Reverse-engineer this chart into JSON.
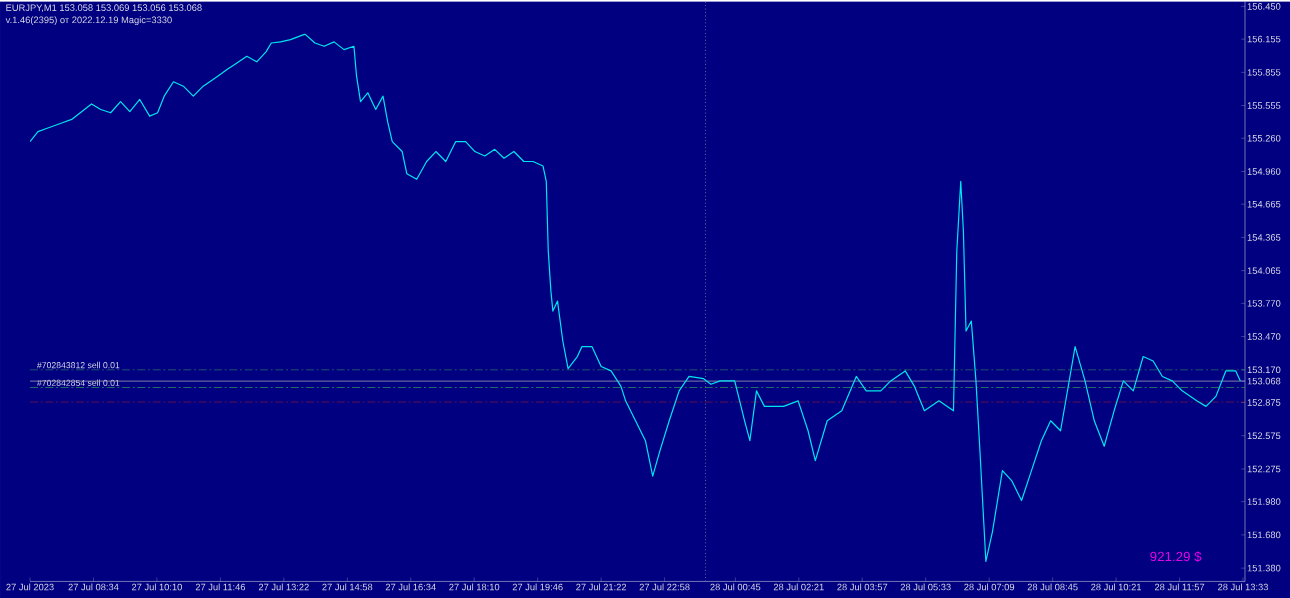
{
  "chart_data": {
    "type": "line",
    "title": "EURJPY,M1  153.058 153.069 153.056 153.068",
    "subtitle": "v.1.46(2395) от 2022.12.19 Magic=3330",
    "annotations": [
      "921.29 $"
    ],
    "xlim": [
      "2023-07-27T06:58",
      "2023-07-28T13:36"
    ],
    "ylim": [
      151.26,
      156.495
    ],
    "xticks": [
      {
        "value": "2023-07-27T06:58",
        "label": "27 Jul 2023"
      },
      {
        "value": "2023-07-27T08:34",
        "label": "27 Jul 08:34"
      },
      {
        "value": "2023-07-27T10:10",
        "label": "27 Jul 10:10"
      },
      {
        "value": "2023-07-27T11:46",
        "label": "27 Jul 11:46"
      },
      {
        "value": "2023-07-27T13:22",
        "label": "27 Jul 13:22"
      },
      {
        "value": "2023-07-27T14:58",
        "label": "27 Jul 14:58"
      },
      {
        "value": "2023-07-27T16:34",
        "label": "27 Jul 16:34"
      },
      {
        "value": "2023-07-27T18:10",
        "label": "27 Jul 18:10"
      },
      {
        "value": "2023-07-27T19:46",
        "label": "27 Jul 19:46"
      },
      {
        "value": "2023-07-27T21:22",
        "label": "27 Jul 21:22"
      },
      {
        "value": "2023-07-27T22:58",
        "label": "27 Jul 22:58"
      },
      {
        "value": "2023-07-28T00:45",
        "label": "28 Jul 00:45"
      },
      {
        "value": "2023-07-28T02:21",
        "label": "28 Jul 02:21"
      },
      {
        "value": "2023-07-28T03:57",
        "label": "28 Jul 03:57"
      },
      {
        "value": "2023-07-28T05:33",
        "label": "28 Jul 05:33"
      },
      {
        "value": "2023-07-28T07:09",
        "label": "28 Jul 07:09"
      },
      {
        "value": "2023-07-28T08:45",
        "label": "28 Jul 08:45"
      },
      {
        "value": "2023-07-28T10:21",
        "label": "28 Jul 10:21"
      },
      {
        "value": "2023-07-28T11:57",
        "label": "28 Jul 11:57"
      },
      {
        "value": "2023-07-28T13:33",
        "label": "28 Jul 13:33"
      }
    ],
    "yticks": [
      {
        "value": 156.45,
        "label": "156.450"
      },
      {
        "value": 156.155,
        "label": "156.155"
      },
      {
        "value": 155.855,
        "label": "155.855"
      },
      {
        "value": 155.555,
        "label": "155.555"
      },
      {
        "value": 155.26,
        "label": "155.260"
      },
      {
        "value": 154.96,
        "label": "154.960"
      },
      {
        "value": 154.665,
        "label": "154.665"
      },
      {
        "value": 154.365,
        "label": "154.365"
      },
      {
        "value": 154.065,
        "label": "154.065"
      },
      {
        "value": 153.77,
        "label": "153.770"
      },
      {
        "value": 153.47,
        "label": "153.470"
      },
      {
        "value": 153.17,
        "label": "153.170"
      },
      {
        "value": 153.068,
        "label": "153.068"
      },
      {
        "value": 152.875,
        "label": "152.875"
      },
      {
        "value": 152.575,
        "label": "152.575"
      },
      {
        "value": 152.275,
        "label": "152.275"
      },
      {
        "value": 151.98,
        "label": "151.980"
      },
      {
        "value": 151.68,
        "label": "151.680"
      },
      {
        "value": 151.38,
        "label": "151.380"
      }
    ],
    "x": [
      "2023-07-27T06:58",
      "2023-07-27T07:10",
      "2023-07-27T07:24",
      "2023-07-27T07:47",
      "2023-07-27T08:01",
      "2023-07-27T08:16",
      "2023-07-27T08:31",
      "2023-07-27T08:45",
      "2023-07-27T09:00",
      "2023-07-27T09:15",
      "2023-07-27T09:29",
      "2023-07-27T09:44",
      "2023-07-27T09:59",
      "2023-07-27T10:11",
      "2023-07-27T10:21",
      "2023-07-27T10:35",
      "2023-07-27T10:50",
      "2023-07-27T11:05",
      "2023-07-27T11:20",
      "2023-07-27T11:42",
      "2023-07-27T11:56",
      "2023-07-27T12:11",
      "2023-07-27T12:26",
      "2023-07-27T12:41",
      "2023-07-27T12:55",
      "2023-07-27T13:03",
      "2023-07-27T13:17",
      "2023-07-27T13:32",
      "2023-07-27T13:54",
      "2023-07-27T14:09",
      "2023-07-27T14:23",
      "2023-07-27T14:38",
      "2023-07-27T14:53",
      "2023-07-27T15:08",
      "2023-07-27T15:12",
      "2023-07-27T15:18",
      "2023-07-27T15:29",
      "2023-07-27T15:41",
      "2023-07-27T15:52",
      "2023-07-27T15:59",
      "2023-07-27T16:06",
      "2023-07-27T16:21",
      "2023-07-27T16:28",
      "2023-07-27T16:43",
      "2023-07-27T16:58",
      "2023-07-27T17:12",
      "2023-07-27T17:27",
      "2023-07-27T17:42",
      "2023-07-27T17:57",
      "2023-07-27T18:11",
      "2023-07-27T18:26",
      "2023-07-27T18:41",
      "2023-07-27T18:55",
      "2023-07-27T19:10",
      "2023-07-27T19:25",
      "2023-07-27T19:39",
      "2023-07-27T19:54",
      "2023-07-27T19:59",
      "2023-07-27T20:02",
      "2023-07-27T20:06",
      "2023-07-27T20:09",
      "2023-07-27T20:16",
      "2023-07-27T20:24",
      "2023-07-27T20:32",
      "2023-07-27T20:46",
      "2023-07-27T20:53",
      "2023-07-27T21:08",
      "2023-07-27T21:22",
      "2023-07-27T21:37",
      "2023-07-27T21:52",
      "2023-07-27T21:59",
      "2023-07-27T22:14",
      "2023-07-27T22:29",
      "2023-07-27T22:40",
      "2023-07-27T22:51",
      "2023-07-27T23:05",
      "2023-07-27T23:20",
      "2023-07-27T23:35",
      "2023-07-27T23:57",
      "2023-07-28T00:08",
      "2023-07-28T00:22",
      "2023-07-28T00:44",
      "2023-07-28T00:59",
      "2023-07-28T01:07",
      "2023-07-28T01:17",
      "2023-07-28T01:29",
      "2023-07-28T01:58",
      "2023-07-28T02:20",
      "2023-07-28T02:35",
      "2023-07-28T02:46",
      "2023-07-28T03:04",
      "2023-07-28T03:26",
      "2023-07-28T03:48",
      "2023-07-28T04:03",
      "2023-07-28T04:25",
      "2023-07-28T04:40",
      "2023-07-28T05:02",
      "2023-07-28T05:16",
      "2023-07-28T05:31",
      "2023-07-28T05:53",
      "2023-07-28T06:15",
      "2023-07-28T06:20",
      "2023-07-28T06:26",
      "2023-07-28T06:30",
      "2023-07-28T06:34",
      "2023-07-28T06:42",
      "2023-07-28T06:49",
      "2023-07-28T06:55",
      "2023-07-28T07:04",
      "2023-07-28T07:14",
      "2023-07-28T07:29",
      "2023-07-28T07:43",
      "2023-07-28T07:58",
      "2023-07-28T08:13",
      "2023-07-28T08:28",
      "2023-07-28T08:42",
      "2023-07-28T08:57",
      "2023-07-28T09:19",
      "2023-07-28T09:34",
      "2023-07-28T09:48",
      "2023-07-28T10:03",
      "2023-07-28T10:18",
      "2023-07-28T10:32",
      "2023-07-28T10:47",
      "2023-07-28T11:02",
      "2023-07-28T11:17",
      "2023-07-28T11:31",
      "2023-07-28T11:46",
      "2023-07-28T12:01",
      "2023-07-28T12:23",
      "2023-07-28T12:37",
      "2023-07-28T12:52",
      "2023-07-28T13:07",
      "2023-07-28T13:22",
      "2023-07-28T13:29"
    ],
    "series": [
      {
        "color": "#00e5ee",
        "values": [
          155.23,
          155.32,
          155.35,
          155.4,
          155.43,
          155.5,
          155.57,
          155.52,
          155.49,
          155.59,
          155.5,
          155.61,
          155.46,
          155.49,
          155.64,
          155.77,
          155.73,
          155.64,
          155.73,
          155.82,
          155.88,
          155.94,
          156.0,
          155.95,
          156.04,
          156.12,
          156.13,
          156.15,
          156.2,
          156.12,
          156.09,
          156.13,
          156.06,
          156.09,
          155.82,
          155.59,
          155.67,
          155.52,
          155.64,
          155.41,
          155.23,
          155.14,
          154.94,
          154.89,
          155.05,
          155.14,
          155.05,
          155.23,
          155.23,
          155.14,
          155.1,
          155.16,
          155.08,
          155.14,
          155.05,
          155.05,
          155.01,
          154.87,
          154.24,
          153.88,
          153.7,
          153.79,
          153.43,
          153.18,
          153.29,
          153.38,
          153.38,
          153.2,
          153.16,
          153.02,
          152.89,
          152.71,
          152.53,
          152.21,
          152.44,
          152.71,
          152.98,
          153.11,
          153.09,
          153.04,
          153.07,
          153.07,
          152.71,
          152.53,
          152.98,
          152.84,
          152.84,
          152.89,
          152.62,
          152.35,
          152.71,
          152.8,
          153.11,
          152.98,
          152.98,
          153.07,
          153.16,
          153.02,
          152.8,
          152.89,
          152.8,
          154.24,
          154.87,
          154.42,
          153.52,
          153.61,
          153.07,
          152.44,
          151.44,
          151.71,
          152.26,
          152.17,
          151.99,
          152.26,
          152.53,
          152.71,
          152.62,
          153.38,
          153.07,
          152.71,
          152.48,
          152.8,
          153.07,
          152.98,
          153.29,
          153.25,
          153.11,
          153.07,
          152.98,
          152.89,
          152.84,
          152.93,
          153.16,
          153.16,
          153.07
        ]
      }
    ],
    "ref_lines": [
      {
        "axis": "y",
        "value": 153.17,
        "label": "#702843812 sell 0.01",
        "color": "#2e8b57",
        "line_style": "dashed"
      },
      {
        "axis": "y",
        "value": 153.01,
        "label": "#702842854 sell 0.01",
        "color": "#2e8b57",
        "line_style": "dashed"
      },
      {
        "axis": "y",
        "value": 152.88,
        "color": "#c81e1e",
        "line_style": "dashed"
      },
      {
        "axis": "y",
        "value": 153.068,
        "color": "#a0a0b4",
        "line_style": "solid"
      },
      {
        "axis": "x",
        "value": "2023-07-28T00:00",
        "color": "#a0a0b4",
        "line_style": "dotted"
      }
    ]
  }
}
